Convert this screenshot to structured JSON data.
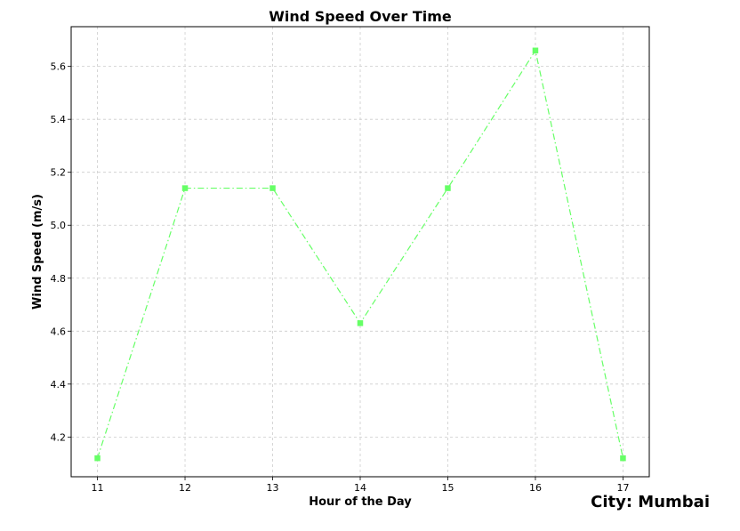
{
  "annotation": {
    "city_label": "City: Mumbai"
  },
  "chart_data": {
    "type": "line",
    "title": "Wind Speed Over Time",
    "xlabel": "Hour of the Day",
    "ylabel": "Wind Speed (m/s)",
    "x": [
      11,
      12,
      13,
      14,
      15,
      16,
      17
    ],
    "series": [
      {
        "values": [
          4.12,
          5.14,
          5.14,
          4.63,
          5.14,
          5.66,
          4.12
        ],
        "color": "#66ff66",
        "marker": "square",
        "line_style": "dash-dot"
      }
    ],
    "xlim": [
      10.7,
      17.3
    ],
    "ylim": [
      4.05,
      5.75
    ],
    "x_ticks": [
      11,
      12,
      13,
      14,
      15,
      16,
      17
    ],
    "y_ticks": [
      4.2,
      4.4,
      4.6,
      4.8,
      5.0,
      5.2,
      5.4,
      5.6
    ],
    "y_tick_labels": [
      "4.2",
      "4.4",
      "4.6",
      "4.8",
      "5.0",
      "5.2",
      "5.4",
      "5.6"
    ],
    "grid": true
  }
}
